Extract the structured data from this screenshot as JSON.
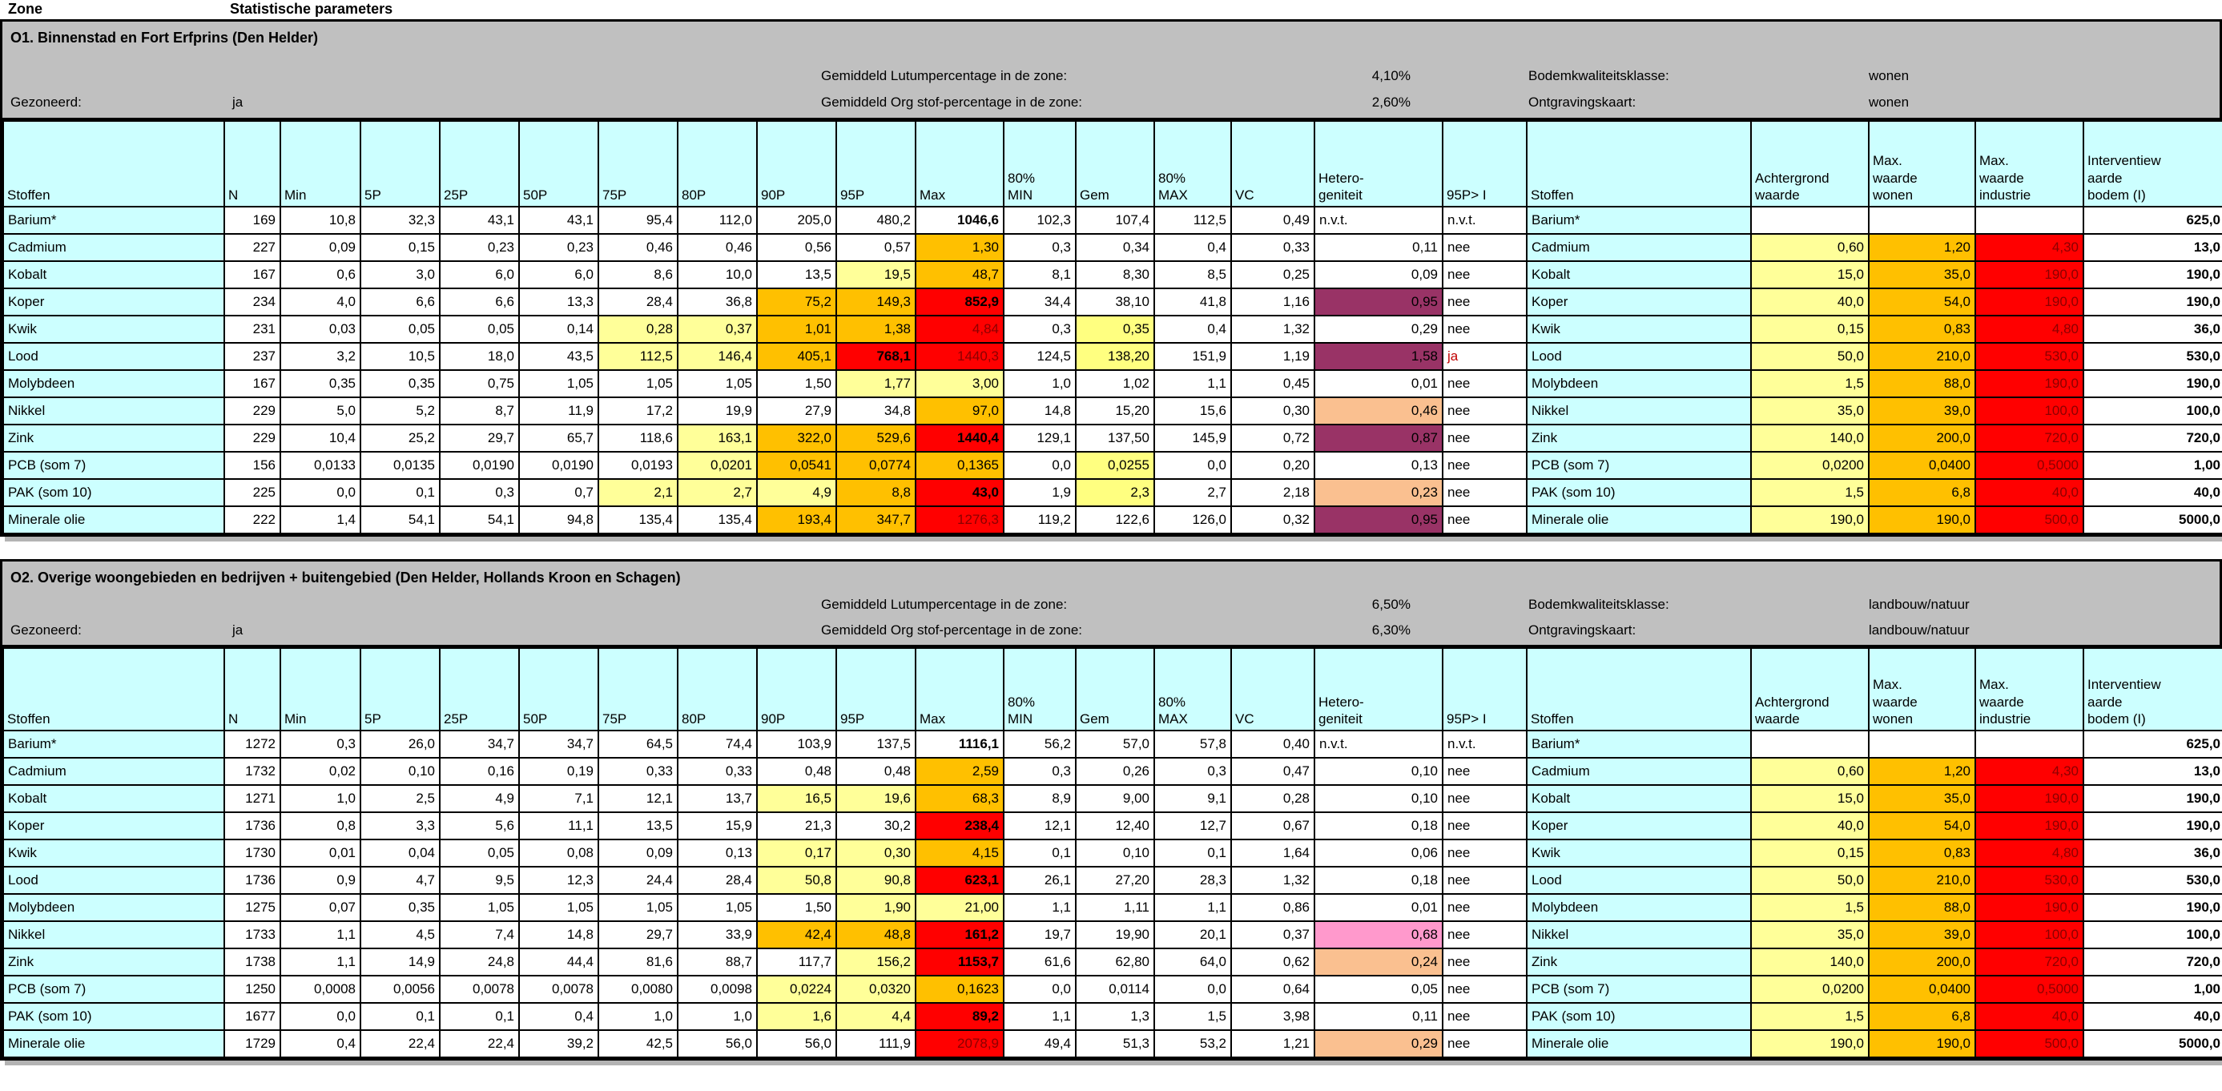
{
  "page": {
    "zone_label": "Zone",
    "params_label": "Statistische parameters"
  },
  "colors": {
    "header_fill": "#CCFFFF",
    "band_fill": "#C0C0C0",
    "light_yellow": "#FFFF99",
    "gem_yellow": "#FFFF80",
    "orange": "#FFC000",
    "red": "#FF0000",
    "plum": "#993366",
    "pink": "#FF99CC",
    "tan": "#FAC090",
    "dark_red_text": "#8B0000",
    "ja_text": "#C00000"
  },
  "band_labels": {
    "gezoneerd": "Gezoneerd:",
    "lutum": "Gemiddeld Lutumpercentage in de zone:",
    "org": "Gemiddeld Org stof-percentage in de zone:",
    "bodemklasse": "Bodemkwaliteitsklasse:",
    "ontgraving": "Ontgravingskaart:"
  },
  "columns": [
    "Stoffen",
    "N",
    "Min",
    "5P",
    "25P",
    "50P",
    "75P",
    "80P",
    "90P",
    "95P",
    "Max",
    "80%\nMIN",
    "Gem",
    "80%\nMAX",
    "VC",
    "Hetero-\ngeniteit",
    "95P> I",
    "Stoffen",
    "Achtergrond\nwaarde",
    "Max.\nwaarde\nwonen",
    "Max.\nwaarde\nindustrie",
    "Interventiew\naarde\nbodem (I)"
  ],
  "zones": [
    {
      "title": "O1. Binnenstad en Fort Erfprins (Den Helder)",
      "gezoneerd_value": "ja",
      "lutum_value": "4,10%",
      "org_value": "2,60%",
      "bodemklasse_value": "wonen",
      "ontgraving_value": "wonen",
      "rows": [
        [
          "Barium*",
          "169",
          "10,8",
          "32,3",
          "43,1",
          "43,1",
          "95,4",
          "112,0",
          "205,0",
          "480,2",
          [
            "1046,6",
            "b"
          ],
          "102,3",
          "107,4",
          "112,5",
          "0,49",
          [
            "n.v.t.",
            "l"
          ],
          "n.v.t.",
          "Barium*",
          "",
          "",
          "",
          [
            "625,0",
            "b"
          ]
        ],
        [
          "Cadmium",
          "227",
          "0,09",
          "0,15",
          "0,23",
          "0,23",
          "0,46",
          "0,46",
          "0,56",
          "0,57",
          [
            "1,30",
            "o"
          ],
          "0,3",
          "0,34",
          "0,4",
          "0,33",
          "0,11",
          "nee",
          "Cadmium",
          [
            "0,60",
            "y"
          ],
          [
            "1,20",
            "o"
          ],
          [
            "4,30",
            "rd"
          ],
          [
            "13,0",
            "b"
          ]
        ],
        [
          "Kobalt",
          "167",
          "0,6",
          "3,0",
          "6,0",
          "6,0",
          "8,6",
          "10,0",
          "13,5",
          [
            "19,5",
            "y"
          ],
          [
            "48,7",
            "o"
          ],
          "8,1",
          "8,30",
          "8,5",
          "0,25",
          "0,09",
          "nee",
          "Kobalt",
          [
            "15,0",
            "y"
          ],
          [
            "35,0",
            "o"
          ],
          [
            "190,0",
            "rd"
          ],
          [
            "190,0",
            "b"
          ]
        ],
        [
          "Koper",
          "234",
          "4,0",
          "6,6",
          "6,6",
          "13,3",
          "28,4",
          "36,8",
          [
            "75,2",
            "o"
          ],
          [
            "149,3",
            "o"
          ],
          [
            "852,9",
            "rb"
          ],
          "34,4",
          "38,10",
          "41,8",
          "1,16",
          [
            "0,95",
            "m"
          ],
          "nee",
          "Koper",
          [
            "40,0",
            "y"
          ],
          [
            "54,0",
            "o"
          ],
          [
            "190,0",
            "rd"
          ],
          [
            "190,0",
            "b"
          ]
        ],
        [
          "Kwik",
          "231",
          "0,03",
          "0,05",
          "0,05",
          "0,14",
          [
            "0,28",
            "y"
          ],
          [
            "0,37",
            "y"
          ],
          [
            "1,01",
            "o"
          ],
          [
            "1,38",
            "o"
          ],
          [
            "4,84",
            "rd"
          ],
          "0,3",
          [
            "0,35",
            "gy"
          ],
          "0,4",
          "1,32",
          "0,29",
          "nee",
          "Kwik",
          [
            "0,15",
            "y"
          ],
          [
            "0,83",
            "o"
          ],
          [
            "4,80",
            "rd"
          ],
          [
            "36,0",
            "b"
          ]
        ],
        [
          "Lood",
          "237",
          "3,2",
          "10,5",
          "18,0",
          "43,5",
          [
            "112,5",
            "y"
          ],
          [
            "146,4",
            "y"
          ],
          [
            "405,1",
            "o"
          ],
          [
            "768,1",
            "rb"
          ],
          [
            "1440,3",
            "rd"
          ],
          "124,5",
          [
            "138,20",
            "gy"
          ],
          "151,9",
          "1,19",
          [
            "1,58",
            "m"
          ],
          [
            "ja",
            "ja"
          ],
          "Lood",
          [
            "50,0",
            "y"
          ],
          [
            "210,0",
            "o"
          ],
          [
            "530,0",
            "rd"
          ],
          [
            "530,0",
            "b"
          ]
        ],
        [
          "Molybdeen",
          "167",
          "0,35",
          "0,35",
          "0,75",
          "1,05",
          "1,05",
          "1,05",
          "1,50",
          [
            "1,77",
            "y"
          ],
          [
            "3,00",
            "y"
          ],
          "1,0",
          "1,02",
          "1,1",
          "0,45",
          "0,01",
          "nee",
          "Molybdeen",
          [
            "1,5",
            "y"
          ],
          [
            "88,0",
            "o"
          ],
          [
            "190,0",
            "rd"
          ],
          [
            "190,0",
            "b"
          ]
        ],
        [
          "Nikkel",
          "229",
          "5,0",
          "5,2",
          "8,7",
          "11,9",
          "17,2",
          "19,9",
          "27,9",
          "34,8",
          [
            "97,0",
            "o"
          ],
          "14,8",
          "15,20",
          "15,6",
          "0,30",
          [
            "0,46",
            "t"
          ],
          "nee",
          "Nikkel",
          [
            "35,0",
            "y"
          ],
          [
            "39,0",
            "o"
          ],
          [
            "100,0",
            "rd"
          ],
          [
            "100,0",
            "b"
          ]
        ],
        [
          "Zink",
          "229",
          "10,4",
          "25,2",
          "29,7",
          "65,7",
          "118,6",
          [
            "163,1",
            "y"
          ],
          [
            "322,0",
            "o"
          ],
          [
            "529,6",
            "o"
          ],
          [
            "1440,4",
            "rb"
          ],
          "129,1",
          "137,50",
          "145,9",
          "0,72",
          [
            "0,87",
            "m"
          ],
          "nee",
          "Zink",
          [
            "140,0",
            "y"
          ],
          [
            "200,0",
            "o"
          ],
          [
            "720,0",
            "rd"
          ],
          [
            "720,0",
            "b"
          ]
        ],
        [
          "PCB (som 7)",
          "156",
          "0,0133",
          "0,0135",
          "0,0190",
          "0,0190",
          "0,0193",
          [
            "0,0201",
            "y"
          ],
          [
            "0,0541",
            "o"
          ],
          [
            "0,0774",
            "o"
          ],
          [
            "0,1365",
            "o"
          ],
          "0,0",
          [
            "0,0255",
            "gy"
          ],
          "0,0",
          "0,20",
          "0,13",
          "nee",
          "PCB (som 7)",
          [
            "0,0200",
            "y"
          ],
          [
            "0,0400",
            "o"
          ],
          [
            "0,5000",
            "rd"
          ],
          [
            "1,00",
            "b"
          ]
        ],
        [
          "PAK (som 10)",
          "225",
          "0,0",
          "0,1",
          "0,3",
          "0,7",
          [
            "2,1",
            "y"
          ],
          [
            "2,7",
            "y"
          ],
          [
            "4,9",
            "y"
          ],
          [
            "8,8",
            "o"
          ],
          [
            "43,0",
            "rb"
          ],
          "1,9",
          [
            "2,3",
            "gy"
          ],
          "2,7",
          "2,18",
          [
            "0,23",
            "t"
          ],
          "nee",
          "PAK (som 10)",
          [
            "1,5",
            "y"
          ],
          [
            "6,8",
            "o"
          ],
          [
            "40,0",
            "rd"
          ],
          [
            "40,0",
            "b"
          ]
        ],
        [
          "Minerale olie",
          "222",
          "1,4",
          "54,1",
          "54,1",
          "94,8",
          "135,4",
          "135,4",
          [
            "193,4",
            "o"
          ],
          [
            "347,7",
            "o"
          ],
          [
            "1276,3",
            "rd"
          ],
          "119,2",
          "122,6",
          "126,0",
          "0,32",
          [
            "0,95",
            "m"
          ],
          "nee",
          "Minerale olie",
          [
            "190,0",
            "y"
          ],
          [
            "190,0",
            "o"
          ],
          [
            "500,0",
            "rd"
          ],
          [
            "5000,0",
            "b"
          ]
        ]
      ]
    },
    {
      "title": "O2. Overige woongebieden en bedrijven + buitengebied (Den Helder, Hollands Kroon en Schagen)",
      "gezoneerd_value": "ja",
      "lutum_value": "6,50%",
      "org_value": "6,30%",
      "bodemklasse_value": "landbouw/natuur",
      "ontgraving_value": "landbouw/natuur",
      "rows": [
        [
          "Barium*",
          "1272",
          "0,3",
          "26,0",
          "34,7",
          "34,7",
          "64,5",
          "74,4",
          "103,9",
          "137,5",
          [
            "1116,1",
            "b"
          ],
          "56,2",
          "57,0",
          "57,8",
          "0,40",
          [
            "n.v.t.",
            "l"
          ],
          "n.v.t.",
          "Barium*",
          "",
          "",
          "",
          [
            "625,0",
            "b"
          ]
        ],
        [
          "Cadmium",
          "1732",
          "0,02",
          "0,10",
          "0,16",
          "0,19",
          "0,33",
          "0,33",
          "0,48",
          "0,48",
          [
            "2,59",
            "o"
          ],
          "0,3",
          "0,26",
          "0,3",
          "0,47",
          "0,10",
          "nee",
          "Cadmium",
          [
            "0,60",
            "y"
          ],
          [
            "1,20",
            "o"
          ],
          [
            "4,30",
            "rd"
          ],
          [
            "13,0",
            "b"
          ]
        ],
        [
          "Kobalt",
          "1271",
          "1,0",
          "2,5",
          "4,9",
          "7,1",
          "12,1",
          "13,7",
          [
            "16,5",
            "y"
          ],
          [
            "19,6",
            "y"
          ],
          [
            "68,3",
            "o"
          ],
          "8,9",
          "9,00",
          "9,1",
          "0,28",
          "0,10",
          "nee",
          "Kobalt",
          [
            "15,0",
            "y"
          ],
          [
            "35,0",
            "o"
          ],
          [
            "190,0",
            "rd"
          ],
          [
            "190,0",
            "b"
          ]
        ],
        [
          "Koper",
          "1736",
          "0,8",
          "3,3",
          "5,6",
          "11,1",
          "13,5",
          "15,9",
          "21,3",
          "30,2",
          [
            "238,4",
            "rb"
          ],
          "12,1",
          "12,40",
          "12,7",
          "0,67",
          "0,18",
          "nee",
          "Koper",
          [
            "40,0",
            "y"
          ],
          [
            "54,0",
            "o"
          ],
          [
            "190,0",
            "rd"
          ],
          [
            "190,0",
            "b"
          ]
        ],
        [
          "Kwik",
          "1730",
          "0,01",
          "0,04",
          "0,05",
          "0,08",
          "0,09",
          "0,13",
          [
            "0,17",
            "y"
          ],
          [
            "0,30",
            "y"
          ],
          [
            "4,15",
            "o"
          ],
          "0,1",
          "0,10",
          "0,1",
          "1,64",
          "0,06",
          "nee",
          "Kwik",
          [
            "0,15",
            "y"
          ],
          [
            "0,83",
            "o"
          ],
          [
            "4,80",
            "rd"
          ],
          [
            "36,0",
            "b"
          ]
        ],
        [
          "Lood",
          "1736",
          "0,9",
          "4,7",
          "9,5",
          "12,3",
          "24,4",
          "28,4",
          [
            "50,8",
            "y"
          ],
          [
            "90,8",
            "y"
          ],
          [
            "623,1",
            "rb"
          ],
          "26,1",
          "27,20",
          "28,3",
          "1,32",
          "0,18",
          "nee",
          "Lood",
          [
            "50,0",
            "y"
          ],
          [
            "210,0",
            "o"
          ],
          [
            "530,0",
            "rd"
          ],
          [
            "530,0",
            "b"
          ]
        ],
        [
          "Molybdeen",
          "1275",
          "0,07",
          "0,35",
          "1,05",
          "1,05",
          "1,05",
          "1,05",
          "1,50",
          [
            "1,90",
            "y"
          ],
          [
            "21,00",
            "y"
          ],
          "1,1",
          "1,11",
          "1,1",
          "0,86",
          "0,01",
          "nee",
          "Molybdeen",
          [
            "1,5",
            "y"
          ],
          [
            "88,0",
            "o"
          ],
          [
            "190,0",
            "rd"
          ],
          [
            "190,0",
            "b"
          ]
        ],
        [
          "Nikkel",
          "1733",
          "1,1",
          "4,5",
          "7,4",
          "14,8",
          "29,7",
          "33,9",
          [
            "42,4",
            "o"
          ],
          [
            "48,8",
            "o"
          ],
          [
            "161,2",
            "rb"
          ],
          "19,7",
          "19,90",
          "20,1",
          "0,37",
          [
            "0,68",
            "p"
          ],
          "nee",
          "Nikkel",
          [
            "35,0",
            "y"
          ],
          [
            "39,0",
            "o"
          ],
          [
            "100,0",
            "rd"
          ],
          [
            "100,0",
            "b"
          ]
        ],
        [
          "Zink",
          "1738",
          "1,1",
          "14,9",
          "24,8",
          "44,4",
          "81,6",
          "88,7",
          "117,7",
          [
            "156,2",
            "y"
          ],
          [
            "1153,7",
            "rb"
          ],
          "61,6",
          "62,80",
          "64,0",
          "0,62",
          [
            "0,24",
            "t"
          ],
          "nee",
          "Zink",
          [
            "140,0",
            "y"
          ],
          [
            "200,0",
            "o"
          ],
          [
            "720,0",
            "rd"
          ],
          [
            "720,0",
            "b"
          ]
        ],
        [
          "PCB (som 7)",
          "1250",
          "0,0008",
          "0,0056",
          "0,0078",
          "0,0078",
          "0,0080",
          "0,0098",
          [
            "0,0224",
            "y"
          ],
          [
            "0,0320",
            "y"
          ],
          [
            "0,1623",
            "o"
          ],
          "0,0",
          "0,0114",
          "0,0",
          "0,64",
          "0,05",
          "nee",
          "PCB (som 7)",
          [
            "0,0200",
            "y"
          ],
          [
            "0,0400",
            "o"
          ],
          [
            "0,5000",
            "rd"
          ],
          [
            "1,00",
            "b"
          ]
        ],
        [
          "PAK (som 10)",
          "1677",
          "0,0",
          "0,1",
          "0,1",
          "0,4",
          "1,0",
          "1,0",
          [
            "1,6",
            "y"
          ],
          [
            "4,4",
            "y"
          ],
          [
            "89,2",
            "rb"
          ],
          "1,1",
          "1,3",
          "1,5",
          "3,98",
          "0,11",
          "nee",
          "PAK (som 10)",
          [
            "1,5",
            "y"
          ],
          [
            "6,8",
            "o"
          ],
          [
            "40,0",
            "rd"
          ],
          [
            "40,0",
            "b"
          ]
        ],
        [
          "Minerale olie",
          "1729",
          "0,4",
          "22,4",
          "22,4",
          "39,2",
          "42,5",
          "56,0",
          "56,0",
          "111,9",
          [
            "2078,9",
            "rd"
          ],
          "49,4",
          "51,3",
          "53,2",
          "1,21",
          [
            "0,29",
            "t"
          ],
          "nee",
          "Minerale olie",
          [
            "190,0",
            "y"
          ],
          [
            "190,0",
            "o"
          ],
          [
            "500,0",
            "rd"
          ],
          [
            "5000,0",
            "b"
          ]
        ]
      ]
    }
  ]
}
